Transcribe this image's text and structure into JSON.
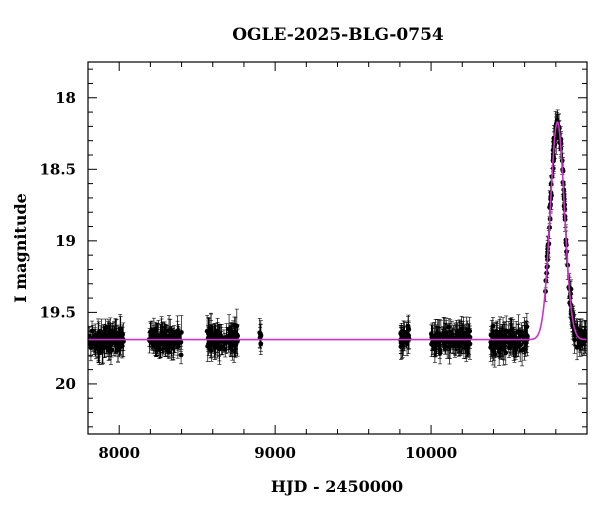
{
  "chart_data": {
    "type": "scatter",
    "title": "OGLE-2025-BLG-0754",
    "xlabel": "HJD - 2450000",
    "ylabel": "I magnitude",
    "xlim": [
      7800,
      11000
    ],
    "ylim": [
      20.35,
      17.75
    ],
    "y_inverted": true,
    "x_ticks": [
      8000,
      9000,
      10000
    ],
    "x_tick_labels": [
      "8000",
      "9000",
      "10000"
    ],
    "y_ticks": [
      18,
      18.5,
      19,
      19.5,
      20
    ],
    "y_tick_labels": [
      "18",
      "18.5",
      "19",
      "19.5",
      "20"
    ],
    "grid": false,
    "legend": "none",
    "colors": {
      "points": "#000000",
      "model": "#cc33cc",
      "axes": "#000000"
    },
    "baseline_mag": 19.69,
    "model_peak": {
      "t0": 10810,
      "peak_mag": 18.17,
      "width_days": 45
    },
    "season_windows": [
      [
        7805,
        8030
      ],
      [
        8190,
        8400
      ],
      [
        8560,
        8760
      ],
      [
        8900,
        8910
      ],
      [
        9805,
        9860
      ],
      [
        10000,
        10250
      ],
      [
        10380,
        10620
      ],
      [
        10730,
        10990
      ]
    ],
    "series": [
      {
        "kind": "points",
        "points_shown": 700,
        "typical_error_mag": 0.07
      },
      {
        "kind": "model"
      }
    ]
  }
}
